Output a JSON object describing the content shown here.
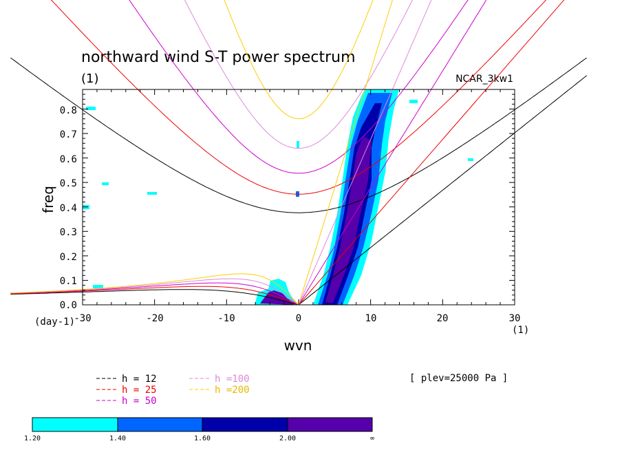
{
  "chart_data": {
    "type": "contour",
    "title": "northward wind S-T power spectrum",
    "subtitle": "(1)",
    "dataset": "NCAR_3kw1",
    "xlabel": "wvn",
    "ylabel": "freq",
    "x_unit": "(1)",
    "y_unit": "(day-1)",
    "xlim": [
      -30,
      30
    ],
    "ylim": [
      0,
      0.88
    ],
    "x_ticks": [
      "-30",
      "-20",
      "-10",
      "0",
      "10",
      "20",
      "30"
    ],
    "y_ticks": [
      "0.0",
      "0.1",
      "0.2",
      "0.3",
      "0.4",
      "0.5",
      "0.6",
      "0.7",
      "0.8"
    ],
    "level_note": "[ plev=25000 Pa ]",
    "legend": [
      {
        "label": "h = 12",
        "color": "#000000",
        "h": 12
      },
      {
        "label": "h = 25",
        "color": "#ee0000",
        "h": 25
      },
      {
        "label": "h = 50",
        "color": "#cc00cc",
        "h": 50
      },
      {
        "label": "h =100",
        "color": "#dd88dd",
        "h": 100
      },
      {
        "label": "h =200",
        "color": "#ffcc00",
        "h": 200
      }
    ],
    "colorbar": {
      "labels": [
        "1.20",
        "1.40",
        "1.60",
        "2.00",
        "∞"
      ],
      "colors": [
        "#00ffff",
        "#0066ff",
        "#0000aa",
        "#5500aa"
      ]
    },
    "shaded_regions": [
      {
        "level": 1,
        "center": [
          7.5,
          0.45
        ],
        "note": "diagonal band along x ≈ 3→12, freq 0→0.88"
      },
      {
        "level": 1,
        "center": [
          -3,
          0.04
        ],
        "note": "low-frequency blob x ≈ -6→0"
      }
    ]
  }
}
